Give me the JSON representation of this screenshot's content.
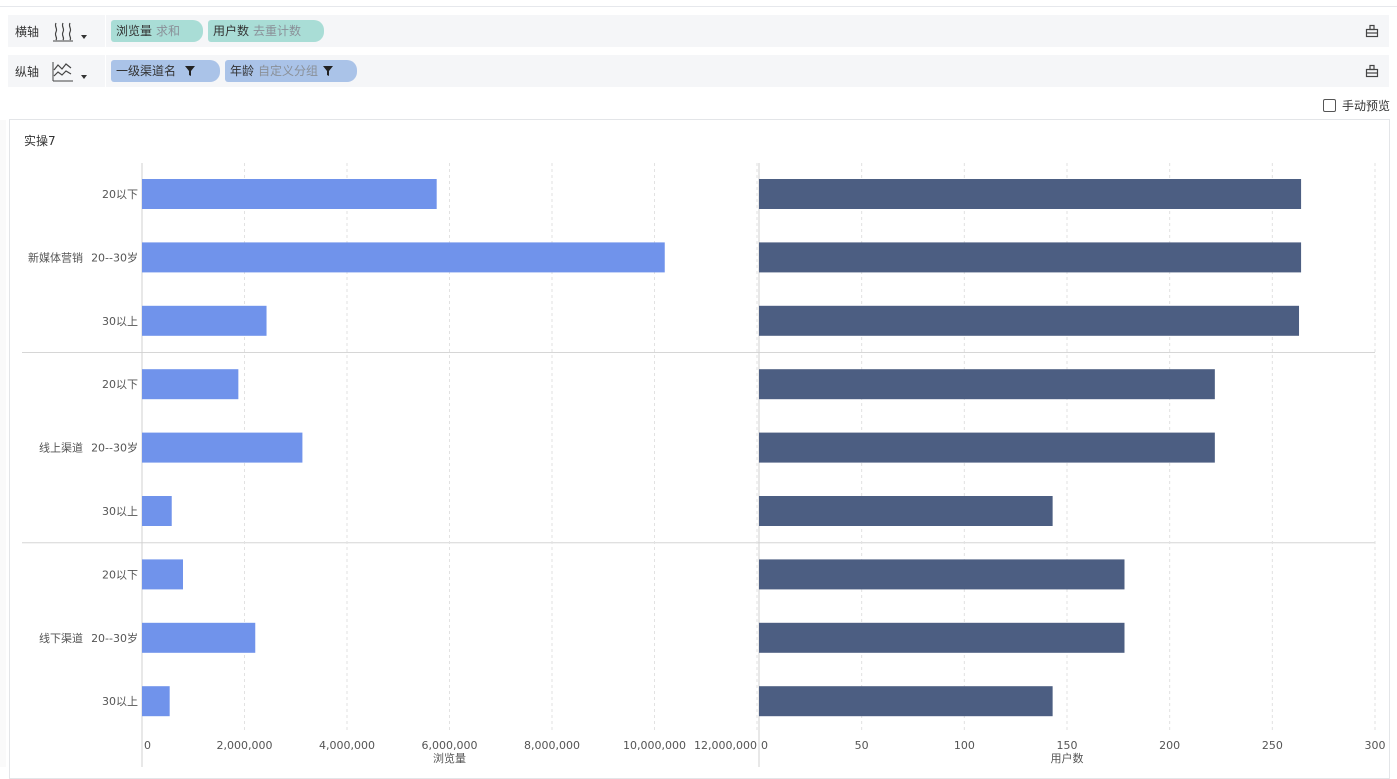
{
  "toolbar": {
    "x_axis": {
      "label": "横轴",
      "icon": "bar-chart-horizontal-icon",
      "fields": [
        {
          "name": "浏览量",
          "sub": "求和",
          "color": "#a9ddd6"
        },
        {
          "name": "用户数",
          "sub": "去重计数",
          "color": "#a9ddd6"
        }
      ]
    },
    "y_axis": {
      "label": "纵轴",
      "icon": "line-chart-icon",
      "fields": [
        {
          "name": "一级渠道名",
          "sub": "",
          "color": "#aac3e8",
          "filter": true
        },
        {
          "name": "年龄",
          "sub": "自定义分组",
          "color": "#aac3e8",
          "filter": true
        }
      ]
    }
  },
  "manual_preview": {
    "label": "手动预览",
    "checked": false
  },
  "chart_title": "实操7",
  "chart_data": {
    "type": "bar",
    "orientation": "horizontal",
    "groups": [
      {
        "name": "新媒体营销",
        "categories": [
          "20以下",
          "20--30岁",
          "30以上"
        ]
      },
      {
        "name": "线上渠道",
        "categories": [
          "20以下",
          "20--30岁",
          "30以上"
        ]
      },
      {
        "name": "线下渠道",
        "categories": [
          "20以下",
          "20--30岁",
          "30以上"
        ]
      }
    ],
    "panels": [
      {
        "metric": "浏览量",
        "xlabel": "浏览量",
        "xlim": [
          0,
          12000000
        ],
        "ticks": [
          0,
          2000000,
          4000000,
          6000000,
          8000000,
          10000000,
          12000000
        ],
        "tick_labels": [
          "0",
          "2,000,000",
          "4,000,000",
          "6,000,000",
          "8,000,000",
          "10,000,000",
          "12,000,000"
        ],
        "color": "#7093eb",
        "values": [
          5750000,
          10200000,
          2430000,
          1880000,
          3130000,
          580000,
          800000,
          2210000,
          540000
        ]
      },
      {
        "metric": "用户数",
        "xlabel": "用户数",
        "xlim": [
          0,
          300
        ],
        "ticks": [
          0,
          50,
          100,
          150,
          200,
          250,
          300
        ],
        "tick_labels": [
          "0",
          "50",
          "100",
          "150",
          "200",
          "250",
          "300"
        ],
        "color": "#4c5e82",
        "values": [
          264,
          264,
          263,
          222,
          222,
          143,
          178,
          178,
          143
        ]
      }
    ],
    "grid": true,
    "legend": "none"
  }
}
